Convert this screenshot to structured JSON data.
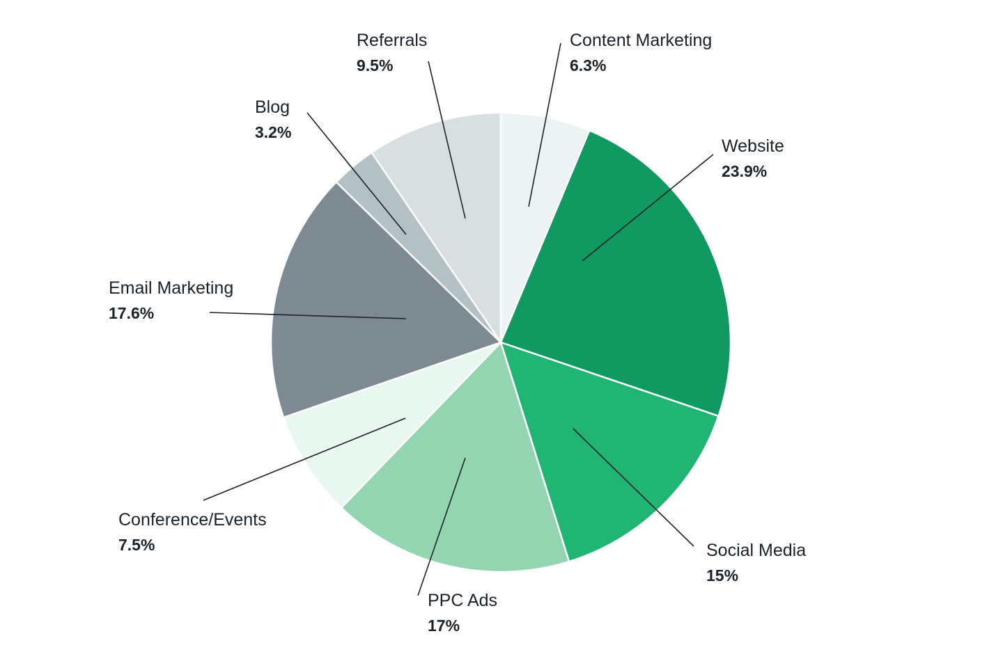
{
  "chart_data": {
    "type": "pie",
    "title": "",
    "slices": [
      {
        "label": "Content Marketing",
        "value": 6.3,
        "value_label": "6.3%",
        "color": "#edf2f4"
      },
      {
        "label": "Website",
        "value": 23.9,
        "value_label": "23.9%",
        "color": "#109a62"
      },
      {
        "label": "Social Media",
        "value": 15,
        "value_label": "15%",
        "color": "#21b573"
      },
      {
        "label": "PPC Ads",
        "value": 17,
        "value_label": "17%",
        "color": "#92d5b0"
      },
      {
        "label": "Conference/Events",
        "value": 7.5,
        "value_label": "7.5%",
        "color": "#e8f7f0"
      },
      {
        "label": "Email Marketing",
        "value": 17.6,
        "value_label": "17.6%",
        "color": "#7d8a92"
      },
      {
        "label": "Blog",
        "value": 3.2,
        "value_label": "3.2%",
        "color": "#b3c1c5"
      },
      {
        "label": "Referrals",
        "value": 9.5,
        "value_label": "9.5%",
        "color": "#d7dfe1"
      }
    ],
    "start_angle": "12 o'clock",
    "direction": "clockwise",
    "legend": "none (labels placed around pie with leader lines)"
  }
}
